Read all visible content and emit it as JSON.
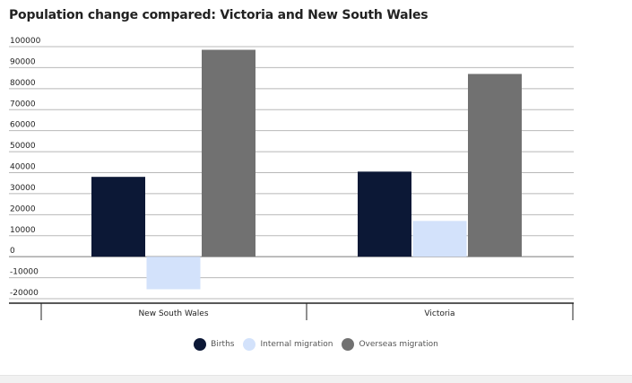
{
  "chart_data": {
    "type": "bar",
    "title": "Population change compared: Victoria and New South Wales",
    "categories": [
      "New South Wales",
      "Victoria"
    ],
    "series": [
      {
        "name": "Births",
        "color": "#0c1836",
        "values": [
          38000,
          40500
        ]
      },
      {
        "name": "Internal migration",
        "color": "#d3e2fb",
        "values": [
          -15500,
          17000
        ]
      },
      {
        "name": "Overseas migration",
        "color": "#717171",
        "values": [
          98500,
          87000
        ]
      }
    ],
    "yticks": [
      100000,
      90000,
      80000,
      70000,
      60000,
      50000,
      40000,
      30000,
      20000,
      10000,
      0,
      -10000,
      -20000
    ],
    "ylim": [
      -20000,
      100000
    ],
    "grid": true,
    "legend": "bottom-center",
    "xlabel": "",
    "ylabel": ""
  }
}
